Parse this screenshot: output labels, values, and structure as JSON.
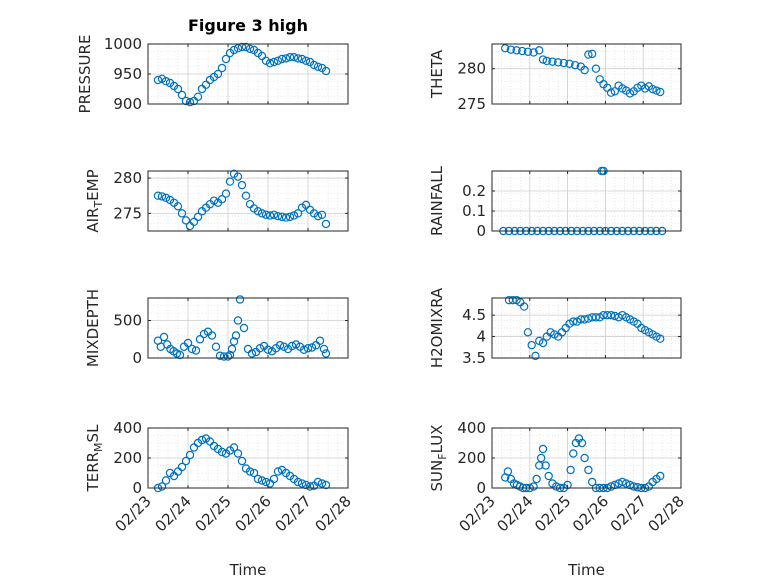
{
  "figure": {
    "title": "Figure 3 high",
    "xlabel": "Time",
    "x_ticks": [
      "02/23",
      "02/24",
      "02/25",
      "02/26",
      "02/27",
      "02/28"
    ],
    "marker_color": "#0072BD"
  },
  "chart_data": [
    {
      "type": "scatter",
      "ylabel": "PRESSURE",
      "ylim": [
        900,
        1000
      ],
      "yticks": [
        "900",
        "950",
        "1000"
      ],
      "xlim": [
        0,
        5
      ],
      "grid": true,
      "x": [
        0.25,
        0.35,
        0.45,
        0.55,
        0.65,
        0.75,
        0.85,
        0.95,
        1.05,
        1.15,
        1.25,
        1.35,
        1.45,
        1.55,
        1.65,
        1.75,
        1.85,
        1.95,
        2.05,
        2.15,
        2.25,
        2.35,
        2.45,
        2.55,
        2.65,
        2.75,
        2.85,
        2.95,
        3.05,
        3.15,
        3.25,
        3.35,
        3.45,
        3.55,
        3.65,
        3.75,
        3.85,
        3.95,
        4.05,
        4.15,
        4.25,
        4.35,
        4.45
      ],
      "y": [
        940,
        942,
        938,
        935,
        930,
        925,
        915,
        905,
        903,
        905,
        912,
        925,
        932,
        940,
        945,
        950,
        960,
        975,
        985,
        990,
        993,
        995,
        995,
        992,
        990,
        985,
        980,
        972,
        968,
        970,
        972,
        975,
        976,
        978,
        978,
        976,
        975,
        972,
        970,
        965,
        962,
        960,
        955
      ]
    },
    {
      "type": "scatter",
      "ylabel": "THETA",
      "ylim": [
        275,
        283.5
      ],
      "yticks": [
        "275",
        "280"
      ],
      "xlim": [
        0,
        5
      ],
      "grid": true,
      "x": [
        0.35,
        0.5,
        0.65,
        0.8,
        0.95,
        1.1,
        1.25,
        1.35,
        1.45,
        1.6,
        1.75,
        1.9,
        2.05,
        2.2,
        2.35,
        2.45,
        2.55,
        2.65,
        2.75,
        2.85,
        2.95,
        3.05,
        3.15,
        3.25,
        3.35,
        3.45,
        3.55,
        3.65,
        3.75,
        3.85,
        3.95,
        4.05,
        4.15,
        4.25,
        4.35,
        4.45
      ],
      "y": [
        282.9,
        282.7,
        282.6,
        282.5,
        282.4,
        282.3,
        282.6,
        281.3,
        281.1,
        281.0,
        280.9,
        280.8,
        280.7,
        280.5,
        280.3,
        279.8,
        282.0,
        282.1,
        280.0,
        278.5,
        277.8,
        277.3,
        276.6,
        276.8,
        277.6,
        277.2,
        276.9,
        276.5,
        276.8,
        277.3,
        277.6,
        277.2,
        277.5,
        277.1,
        276.9,
        276.7
      ]
    },
    {
      "type": "scatter",
      "ylabel": "AIR_TEMP",
      "ylim": [
        272.5,
        281
      ],
      "yticks": [
        "275",
        "280"
      ],
      "xlim": [
        0,
        5
      ],
      "grid": true,
      "x": [
        0.25,
        0.35,
        0.45,
        0.55,
        0.65,
        0.75,
        0.85,
        0.95,
        1.05,
        1.15,
        1.25,
        1.35,
        1.45,
        1.55,
        1.65,
        1.75,
        1.85,
        1.95,
        2.05,
        2.15,
        2.25,
        2.35,
        2.45,
        2.55,
        2.65,
        2.75,
        2.85,
        2.95,
        3.05,
        3.15,
        3.25,
        3.35,
        3.45,
        3.55,
        3.65,
        3.75,
        3.85,
        3.95,
        4.05,
        4.15,
        4.25,
        4.35,
        4.45
      ],
      "y": [
        277.5,
        277.4,
        277.2,
        276.9,
        276.5,
        276.0,
        275.0,
        274.0,
        273.2,
        273.8,
        274.5,
        275.3,
        275.8,
        276.3,
        276.8,
        276.5,
        277.0,
        277.8,
        279.5,
        280.6,
        280.2,
        279.0,
        277.5,
        276.3,
        275.7,
        275.3,
        275.0,
        274.8,
        274.7,
        274.8,
        274.6,
        274.5,
        274.4,
        274.5,
        274.7,
        275.0,
        275.8,
        276.2,
        275.5,
        275.0,
        274.6,
        274.8,
        273.5
      ]
    },
    {
      "type": "scatter",
      "ylabel": "RAINFALL",
      "ylim": [
        0,
        0.3
      ],
      "yticks": [
        "0",
        "0.1",
        "0.2"
      ],
      "xlim": [
        0,
        5
      ],
      "grid": true,
      "x": [
        0.3,
        0.45,
        0.6,
        0.75,
        0.9,
        1.05,
        1.2,
        1.35,
        1.5,
        1.65,
        1.8,
        1.95,
        2.1,
        2.25,
        2.4,
        2.55,
        2.7,
        2.85,
        2.9,
        2.95,
        3.0,
        3.15,
        3.3,
        3.45,
        3.6,
        3.75,
        3.9,
        4.05,
        4.2,
        4.35,
        4.5
      ],
      "y": [
        0,
        0,
        0,
        0,
        0,
        0,
        0,
        0,
        0,
        0,
        0,
        0,
        0,
        0,
        0,
        0,
        0,
        0,
        0.3,
        0.3,
        0,
        0,
        0,
        0,
        0,
        0,
        0,
        0,
        0,
        0,
        0
      ]
    },
    {
      "type": "scatter",
      "ylabel": "MIXDEPTH",
      "ylim": [
        0,
        800
      ],
      "yticks": [
        "0",
        "500"
      ],
      "xlim": [
        0,
        5
      ],
      "grid": true,
      "x": [
        0.25,
        0.32,
        0.4,
        0.48,
        0.56,
        0.64,
        0.72,
        0.8,
        0.9,
        1.0,
        1.1,
        1.2,
        1.3,
        1.4,
        1.5,
        1.6,
        1.7,
        1.8,
        1.9,
        2.0,
        2.05,
        2.1,
        2.15,
        2.2,
        2.25,
        2.3,
        2.4,
        2.5,
        2.6,
        2.7,
        2.8,
        2.9,
        3.0,
        3.1,
        3.2,
        3.3,
        3.4,
        3.5,
        3.6,
        3.7,
        3.8,
        3.9,
        4.0,
        4.1,
        4.2,
        4.3,
        4.4,
        4.45
      ],
      "y": [
        230,
        150,
        280,
        180,
        120,
        90,
        60,
        40,
        150,
        200,
        120,
        100,
        250,
        320,
        350,
        300,
        150,
        30,
        20,
        20,
        40,
        120,
        220,
        300,
        500,
        780,
        400,
        120,
        60,
        80,
        130,
        160,
        110,
        90,
        130,
        170,
        150,
        120,
        160,
        180,
        150,
        110,
        130,
        140,
        170,
        230,
        120,
        60
      ]
    },
    {
      "type": "scatter",
      "ylabel": "H2OMIXRA",
      "ylim": [
        3.5,
        4.9
      ],
      "yticks": [
        "3.5",
        "4",
        "4.5"
      ],
      "xlim": [
        0,
        5
      ],
      "grid": true,
      "x": [
        0.45,
        0.55,
        0.65,
        0.75,
        0.85,
        0.95,
        1.05,
        1.15,
        1.25,
        1.35,
        1.45,
        1.55,
        1.65,
        1.75,
        1.85,
        1.95,
        2.05,
        2.15,
        2.25,
        2.35,
        2.45,
        2.55,
        2.65,
        2.75,
        2.85,
        2.95,
        3.05,
        3.15,
        3.25,
        3.35,
        3.45,
        3.55,
        3.65,
        3.75,
        3.85,
        3.95,
        4.05,
        4.15,
        4.25,
        4.35,
        4.45
      ],
      "y": [
        4.85,
        4.85,
        4.85,
        4.8,
        4.7,
        4.1,
        3.8,
        3.55,
        3.9,
        3.85,
        4.0,
        4.1,
        4.05,
        4.0,
        4.1,
        4.2,
        4.3,
        4.35,
        4.35,
        4.4,
        4.4,
        4.42,
        4.45,
        4.45,
        4.45,
        4.5,
        4.5,
        4.5,
        4.48,
        4.45,
        4.5,
        4.45,
        4.4,
        4.35,
        4.3,
        4.2,
        4.15,
        4.1,
        4.05,
        4.0,
        3.95
      ]
    },
    {
      "type": "scatter",
      "ylabel": "TERR_MSL",
      "ylim": [
        0,
        400
      ],
      "yticks": [
        "0",
        "200",
        "400"
      ],
      "xlim": [
        0,
        5
      ],
      "grid": true,
      "x": [
        0.25,
        0.35,
        0.45,
        0.55,
        0.65,
        0.75,
        0.85,
        0.95,
        1.05,
        1.15,
        1.25,
        1.35,
        1.45,
        1.55,
        1.65,
        1.75,
        1.85,
        1.95,
        2.05,
        2.15,
        2.25,
        2.35,
        2.45,
        2.55,
        2.65,
        2.75,
        2.85,
        2.95,
        3.05,
        3.15,
        3.25,
        3.35,
        3.45,
        3.55,
        3.65,
        3.75,
        3.85,
        3.95,
        4.05,
        4.15,
        4.25,
        4.35,
        4.45
      ],
      "y": [
        0,
        10,
        50,
        100,
        80,
        110,
        140,
        180,
        220,
        270,
        300,
        320,
        330,
        310,
        280,
        260,
        240,
        230,
        250,
        270,
        230,
        180,
        130,
        110,
        100,
        60,
        50,
        40,
        30,
        60,
        110,
        120,
        100,
        80,
        60,
        40,
        30,
        20,
        10,
        15,
        40,
        30,
        20
      ]
    },
    {
      "type": "scatter",
      "ylabel": "SUN_FLUX",
      "ylim": [
        0,
        400
      ],
      "yticks": [
        "0",
        "200",
        "400"
      ],
      "xlim": [
        0,
        5
      ],
      "grid": true,
      "x": [
        0.35,
        0.42,
        0.5,
        0.58,
        0.66,
        0.74,
        0.82,
        0.9,
        1.0,
        1.1,
        1.18,
        1.25,
        1.3,
        1.35,
        1.42,
        1.5,
        1.6,
        1.7,
        1.8,
        1.9,
        2.0,
        2.08,
        2.15,
        2.22,
        2.3,
        2.38,
        2.45,
        2.55,
        2.65,
        2.75,
        2.85,
        2.95,
        3.05,
        3.15,
        3.25,
        3.35,
        3.45,
        3.55,
        3.65,
        3.75,
        3.85,
        3.95,
        4.05,
        4.15,
        4.25,
        4.35,
        4.45
      ],
      "y": [
        70,
        110,
        60,
        30,
        20,
        10,
        0,
        0,
        0,
        10,
        60,
        150,
        200,
        260,
        150,
        80,
        30,
        10,
        0,
        0,
        20,
        120,
        230,
        300,
        330,
        300,
        200,
        120,
        40,
        0,
        0,
        0,
        0,
        10,
        20,
        30,
        40,
        30,
        20,
        10,
        5,
        0,
        0,
        10,
        40,
        60,
        80
      ]
    }
  ]
}
